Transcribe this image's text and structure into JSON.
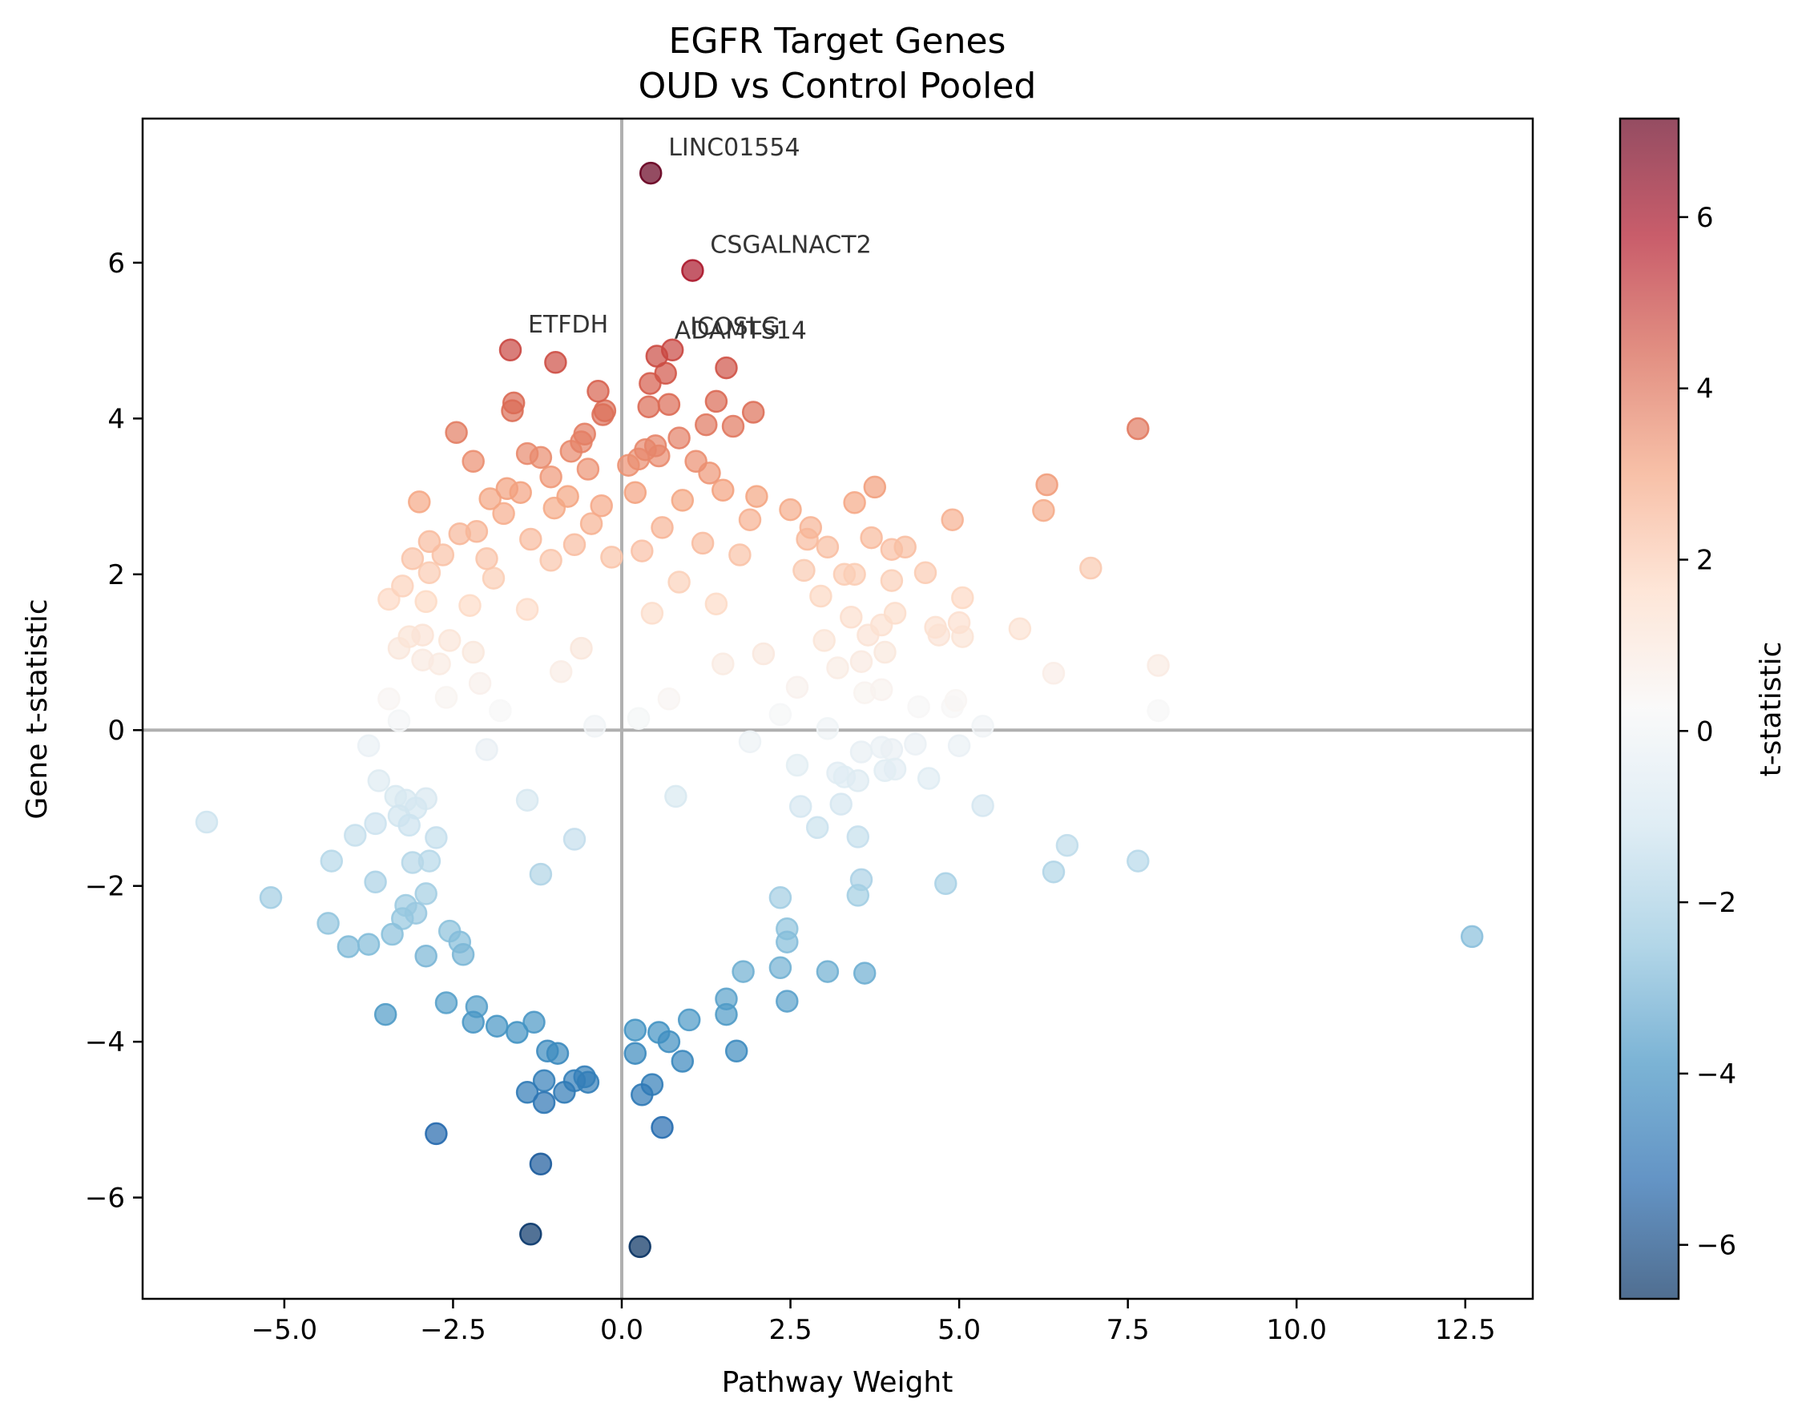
{
  "chart_data": {
    "type": "scatter",
    "title": [
      "EGFR Target Genes",
      "OUD vs Control Pooled"
    ],
    "xlabel": "Pathway Weight",
    "ylabel": "Gene t-statistic",
    "xlim": [
      -7.1,
      13.5
    ],
    "ylim": [
      -7.3,
      7.85
    ],
    "xticks": [
      -5.0,
      -2.5,
      0.0,
      2.5,
      5.0,
      7.5,
      10.0,
      12.5
    ],
    "xtick_labels": [
      "−5.0",
      "−2.5",
      "0.0",
      "2.5",
      "5.0",
      "7.5",
      "10.0",
      "12.5"
    ],
    "yticks": [
      -6,
      -4,
      -2,
      0,
      2,
      4,
      6
    ],
    "ytick_labels": [
      "−6",
      "−4",
      "−2",
      "0",
      "2",
      "4",
      "6"
    ],
    "reference_lines": {
      "x": 0,
      "y": 0
    },
    "grid": false,
    "legend": "none",
    "colormap": "RdBu_r",
    "colormap_stops": [
      "#053061",
      "#2166ac",
      "#4393c3",
      "#92c5de",
      "#d1e5f0",
      "#f7f7f7",
      "#fddbc7",
      "#f4a582",
      "#d6604d",
      "#b2182b",
      "#67001f"
    ],
    "color_range": [
      -6.63,
      7.15
    ],
    "point_alpha": 0.7,
    "colorbar": {
      "label": "t-statistic",
      "ticks": [
        -6,
        -4,
        -2,
        0,
        2,
        4,
        6
      ],
      "tick_labels": [
        "−6",
        "−4",
        "−2",
        "0",
        "2",
        "4",
        "6"
      ]
    },
    "annotations": [
      {
        "text": "LINC01554",
        "x": 0.43,
        "y": 7.15
      },
      {
        "text": "CSGALNACT2",
        "x": 1.05,
        "y": 5.9
      },
      {
        "text": "ETFDH",
        "x": -1.65,
        "y": 4.88
      },
      {
        "text": "ICOSLG",
        "x": 0.75,
        "y": 4.85
      },
      {
        "text": "ADAMTS14",
        "x": 0.52,
        "y": 4.8
      }
    ],
    "points": [
      [
        0.43,
        7.15
      ],
      [
        1.05,
        5.9
      ],
      [
        -1.65,
        4.88
      ],
      [
        0.75,
        4.88
      ],
      [
        0.52,
        4.8
      ],
      [
        -0.98,
        4.72
      ],
      [
        1.55,
        4.65
      ],
      [
        0.65,
        4.58
      ],
      [
        0.42,
        4.45
      ],
      [
        -0.35,
        4.35
      ],
      [
        1.4,
        4.22
      ],
      [
        -1.6,
        4.2
      ],
      [
        0.7,
        4.18
      ],
      [
        0.4,
        4.15
      ],
      [
        -1.62,
        4.1
      ],
      [
        1.95,
        4.08
      ],
      [
        -0.28,
        4.05
      ],
      [
        -0.25,
        4.1
      ],
      [
        1.25,
        3.92
      ],
      [
        1.65,
        3.9
      ],
      [
        7.65,
        3.87
      ],
      [
        -2.45,
        3.82
      ],
      [
        -0.55,
        3.8
      ],
      [
        0.85,
        3.75
      ],
      [
        -0.6,
        3.7
      ],
      [
        0.5,
        3.65
      ],
      [
        0.35,
        3.6
      ],
      [
        -0.75,
        3.58
      ],
      [
        -1.4,
        3.55
      ],
      [
        -1.2,
        3.5
      ],
      [
        0.55,
        3.52
      ],
      [
        0.25,
        3.48
      ],
      [
        -2.2,
        3.45
      ],
      [
        1.1,
        3.45
      ],
      [
        0.1,
        3.4
      ],
      [
        -0.5,
        3.35
      ],
      [
        1.3,
        3.3
      ],
      [
        -1.05,
        3.25
      ],
      [
        3.75,
        3.12
      ],
      [
        6.3,
        3.15
      ],
      [
        -1.7,
        3.1
      ],
      [
        -1.5,
        3.05
      ],
      [
        1.5,
        3.08
      ],
      [
        0.2,
        3.05
      ],
      [
        2.0,
        3.0
      ],
      [
        -0.8,
        3.0
      ],
      [
        -3.0,
        2.93
      ],
      [
        -1.95,
        2.97
      ],
      [
        3.45,
        2.92
      ],
      [
        0.9,
        2.95
      ],
      [
        -0.3,
        2.88
      ],
      [
        2.5,
        2.83
      ],
      [
        6.25,
        2.82
      ],
      [
        -1.0,
        2.85
      ],
      [
        -1.75,
        2.78
      ],
      [
        4.9,
        2.7
      ],
      [
        1.9,
        2.7
      ],
      [
        2.8,
        2.6
      ],
      [
        -0.45,
        2.65
      ],
      [
        -2.15,
        2.55
      ],
      [
        0.6,
        2.6
      ],
      [
        -2.4,
        2.52
      ],
      [
        3.7,
        2.47
      ],
      [
        2.75,
        2.45
      ],
      [
        -1.35,
        2.45
      ],
      [
        -2.85,
        2.42
      ],
      [
        3.05,
        2.35
      ],
      [
        4.0,
        2.32
      ],
      [
        4.2,
        2.35
      ],
      [
        1.2,
        2.4
      ],
      [
        -0.7,
        2.38
      ],
      [
        -2.65,
        2.25
      ],
      [
        1.75,
        2.25
      ],
      [
        0.3,
        2.3
      ],
      [
        -3.1,
        2.2
      ],
      [
        -2.0,
        2.2
      ],
      [
        -0.15,
        2.22
      ],
      [
        -1.05,
        2.18
      ],
      [
        6.95,
        2.08
      ],
      [
        4.5,
        2.02
      ],
      [
        2.7,
        2.05
      ],
      [
        3.3,
        2.0
      ],
      [
        3.45,
        2.0
      ],
      [
        -2.85,
        2.02
      ],
      [
        -3.25,
        1.85
      ],
      [
        4.0,
        1.92
      ],
      [
        -1.9,
        1.95
      ],
      [
        0.85,
        1.9
      ],
      [
        2.95,
        1.72
      ],
      [
        -3.45,
        1.68
      ],
      [
        5.05,
        1.7
      ],
      [
        -2.9,
        1.65
      ],
      [
        -2.25,
        1.6
      ],
      [
        1.4,
        1.62
      ],
      [
        -1.4,
        1.55
      ],
      [
        4.05,
        1.5
      ],
      [
        3.4,
        1.45
      ],
      [
        0.45,
        1.5
      ],
      [
        4.65,
        1.32
      ],
      [
        5.0,
        1.38
      ],
      [
        5.9,
        1.3
      ],
      [
        3.85,
        1.35
      ],
      [
        -3.15,
        1.2
      ],
      [
        -2.95,
        1.22
      ],
      [
        5.05,
        1.2
      ],
      [
        4.7,
        1.22
      ],
      [
        3.65,
        1.22
      ],
      [
        -2.55,
        1.15
      ],
      [
        3.0,
        1.15
      ],
      [
        -3.3,
        1.05
      ],
      [
        -2.2,
        1.0
      ],
      [
        3.9,
        1.0
      ],
      [
        -0.6,
        1.05
      ],
      [
        2.1,
        0.98
      ],
      [
        -2.95,
        0.9
      ],
      [
        3.55,
        0.88
      ],
      [
        -2.7,
        0.85
      ],
      [
        7.95,
        0.83
      ],
      [
        3.2,
        0.8
      ],
      [
        1.5,
        0.85
      ],
      [
        -0.9,
        0.75
      ],
      [
        6.4,
        0.73
      ],
      [
        -2.1,
        0.6
      ],
      [
        2.6,
        0.55
      ],
      [
        3.6,
        0.48
      ],
      [
        3.85,
        0.52
      ],
      [
        -3.45,
        0.4
      ],
      [
        4.95,
        0.38
      ],
      [
        -2.6,
        0.42
      ],
      [
        0.7,
        0.4
      ],
      [
        4.4,
        0.3
      ],
      [
        4.9,
        0.3
      ],
      [
        7.95,
        0.25
      ],
      [
        -1.8,
        0.25
      ],
      [
        2.35,
        0.2
      ],
      [
        -3.3,
        0.12
      ],
      [
        0.25,
        0.15
      ],
      [
        5.35,
        0.05
      ],
      [
        3.05,
        0.02
      ],
      [
        -0.4,
        0.05
      ],
      [
        -3.75,
        -0.2
      ],
      [
        3.55,
        -0.28
      ],
      [
        4.0,
        -0.25
      ],
      [
        3.85,
        -0.22
      ],
      [
        4.35,
        -0.18
      ],
      [
        5.0,
        -0.2
      ],
      [
        1.9,
        -0.15
      ],
      [
        -2.0,
        -0.25
      ],
      [
        4.05,
        -0.5
      ],
      [
        3.9,
        -0.52
      ],
      [
        4.55,
        -0.62
      ],
      [
        3.2,
        -0.55
      ],
      [
        3.3,
        -0.6
      ],
      [
        3.5,
        -0.65
      ],
      [
        -3.6,
        -0.65
      ],
      [
        2.6,
        -0.45
      ],
      [
        -3.35,
        -0.85
      ],
      [
        -3.2,
        -0.9
      ],
      [
        -2.9,
        -0.88
      ],
      [
        0.8,
        -0.85
      ],
      [
        -1.4,
        -0.9
      ],
      [
        3.25,
        -0.95
      ],
      [
        5.35,
        -0.97
      ],
      [
        2.65,
        -0.98
      ],
      [
        -3.05,
        -1.0
      ],
      [
        -3.3,
        -1.1
      ],
      [
        -6.15,
        -1.18
      ],
      [
        -3.65,
        -1.2
      ],
      [
        -3.95,
        -1.35
      ],
      [
        -3.15,
        -1.22
      ],
      [
        -2.75,
        -1.38
      ],
      [
        2.9,
        -1.25
      ],
      [
        3.5,
        -1.37
      ],
      [
        6.6,
        -1.48
      ],
      [
        -0.7,
        -1.4
      ],
      [
        -4.3,
        -1.68
      ],
      [
        -3.1,
        -1.7
      ],
      [
        -2.85,
        -1.68
      ],
      [
        7.65,
        -1.68
      ],
      [
        6.4,
        -1.82
      ],
      [
        -3.65,
        -1.95
      ],
      [
        3.55,
        -1.92
      ],
      [
        4.8,
        -1.97
      ],
      [
        -1.2,
        -1.85
      ],
      [
        -5.2,
        -2.15
      ],
      [
        -2.9,
        -2.1
      ],
      [
        -3.2,
        -2.25
      ],
      [
        3.5,
        -2.12
      ],
      [
        2.35,
        -2.15
      ],
      [
        -3.25,
        -2.42
      ],
      [
        -3.05,
        -2.35
      ],
      [
        -4.35,
        -2.48
      ],
      [
        -2.55,
        -2.58
      ],
      [
        -2.4,
        -2.72
      ],
      [
        12.6,
        -2.65
      ],
      [
        2.45,
        -2.55
      ],
      [
        -3.75,
        -2.75
      ],
      [
        -4.05,
        -2.78
      ],
      [
        -3.4,
        -2.62
      ],
      [
        2.45,
        -2.72
      ],
      [
        -2.9,
        -2.9
      ],
      [
        -2.35,
        -2.88
      ],
      [
        2.35,
        -3.05
      ],
      [
        3.05,
        -3.1
      ],
      [
        3.6,
        -3.12
      ],
      [
        1.8,
        -3.1
      ],
      [
        -2.6,
        -3.5
      ],
      [
        -2.15,
        -3.55
      ],
      [
        -3.5,
        -3.65
      ],
      [
        2.45,
        -3.48
      ],
      [
        1.55,
        -3.45
      ],
      [
        -2.2,
        -3.75
      ],
      [
        -1.85,
        -3.8
      ],
      [
        1.55,
        -3.65
      ],
      [
        1.0,
        -3.72
      ],
      [
        0.2,
        -3.85
      ],
      [
        0.55,
        -3.88
      ],
      [
        -1.55,
        -3.88
      ],
      [
        -1.3,
        -3.75
      ],
      [
        0.7,
        -4.0
      ],
      [
        1.7,
        -4.12
      ],
      [
        -1.1,
        -4.12
      ],
      [
        0.2,
        -4.15
      ],
      [
        -0.95,
        -4.15
      ],
      [
        0.9,
        -4.25
      ],
      [
        -0.55,
        -4.45
      ],
      [
        -0.7,
        -4.5
      ],
      [
        -0.5,
        -4.52
      ],
      [
        0.45,
        -4.55
      ],
      [
        -1.15,
        -4.5
      ],
      [
        -1.4,
        -4.65
      ],
      [
        -0.85,
        -4.65
      ],
      [
        0.3,
        -4.68
      ],
      [
        -1.15,
        -4.78
      ],
      [
        0.6,
        -5.1
      ],
      [
        -2.75,
        -5.18
      ],
      [
        -1.2,
        -5.57
      ],
      [
        -1.35,
        -6.47
      ],
      [
        0.27,
        -6.63
      ]
    ]
  }
}
